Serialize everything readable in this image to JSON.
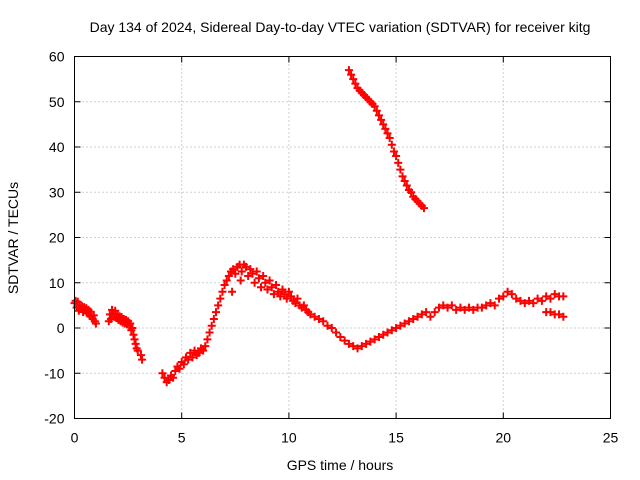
{
  "chart_data": {
    "type": "scatter",
    "title": "Day 134 of 2024, Sidereal Day-to-day VTEC variation (SDTVAR) for receiver kitg",
    "xlabel": "GPS time / hours",
    "ylabel": "SDTVAR / TECUs",
    "xlim": [
      0,
      25
    ],
    "ylim": [
      -20,
      60
    ],
    "xticks": [
      0,
      5,
      10,
      15,
      20,
      25
    ],
    "yticks": [
      -20,
      -10,
      0,
      10,
      20,
      30,
      40,
      50,
      60
    ],
    "grid": true,
    "marker": "+",
    "series": [
      {
        "name": "SDTVAR",
        "color": "#ff0000",
        "points": [
          [
            0.0,
            5.5
          ],
          [
            0.05,
            6.0
          ],
          [
            0.1,
            4.5
          ],
          [
            0.15,
            5.8
          ],
          [
            0.2,
            3.8
          ],
          [
            0.25,
            5.0
          ],
          [
            0.3,
            4.2
          ],
          [
            0.35,
            4.8
          ],
          [
            0.4,
            3.5
          ],
          [
            0.45,
            4.6
          ],
          [
            0.5,
            3.9
          ],
          [
            0.55,
            4.4
          ],
          [
            0.6,
            3.2
          ],
          [
            0.65,
            4.0
          ],
          [
            0.7,
            2.8
          ],
          [
            0.75,
            3.6
          ],
          [
            0.8,
            2.5
          ],
          [
            0.85,
            2.0
          ],
          [
            0.9,
            2.8
          ],
          [
            0.95,
            1.5
          ],
          [
            1.0,
            1.0
          ],
          [
            1.6,
            1.5
          ],
          [
            1.65,
            3.0
          ],
          [
            1.7,
            2.0
          ],
          [
            1.75,
            4.0
          ],
          [
            1.8,
            3.2
          ],
          [
            1.85,
            2.5
          ],
          [
            1.9,
            3.8
          ],
          [
            1.95,
            2.2
          ],
          [
            2.0,
            3.0
          ],
          [
            2.05,
            1.8
          ],
          [
            2.1,
            2.6
          ],
          [
            2.15,
            1.5
          ],
          [
            2.2,
            2.4
          ],
          [
            2.25,
            1.2
          ],
          [
            2.3,
            2.0
          ],
          [
            2.35,
            1.0
          ],
          [
            2.4,
            1.8
          ],
          [
            2.45,
            0.8
          ],
          [
            2.5,
            1.5
          ],
          [
            2.55,
            0.5
          ],
          [
            2.6,
            1.0
          ],
          [
            2.65,
            -0.5
          ],
          [
            2.7,
            0.0
          ],
          [
            2.75,
            -1.5
          ],
          [
            2.8,
            -2.5
          ],
          [
            2.85,
            -3.5
          ],
          [
            2.9,
            -4.5
          ],
          [
            2.95,
            -5.0
          ],
          [
            3.1,
            -6.0
          ],
          [
            3.15,
            -7.0
          ],
          [
            4.1,
            -10.0
          ],
          [
            4.2,
            -11.0
          ],
          [
            4.3,
            -12.0
          ],
          [
            4.4,
            -11.5
          ],
          [
            4.5,
            -10.5
          ],
          [
            4.6,
            -11.0
          ],
          [
            4.7,
            -9.5
          ],
          [
            4.8,
            -8.5
          ],
          [
            4.9,
            -9.0
          ],
          [
            5.0,
            -7.5
          ],
          [
            5.1,
            -8.0
          ],
          [
            5.2,
            -6.5
          ],
          [
            5.3,
            -7.0
          ],
          [
            5.4,
            -5.5
          ],
          [
            5.5,
            -6.5
          ],
          [
            5.6,
            -5.0
          ],
          [
            5.7,
            -6.0
          ],
          [
            5.8,
            -5.5
          ],
          [
            5.9,
            -4.5
          ],
          [
            6.0,
            -5.0
          ],
          [
            6.1,
            -4.0
          ],
          [
            6.2,
            -2.5
          ],
          [
            6.3,
            -1.0
          ],
          [
            6.4,
            0.5
          ],
          [
            6.5,
            2.0
          ],
          [
            6.6,
            3.5
          ],
          [
            6.7,
            5.0
          ],
          [
            6.8,
            6.5
          ],
          [
            6.9,
            8.0
          ],
          [
            7.0,
            9.5
          ],
          [
            7.1,
            10.5
          ],
          [
            7.2,
            11.5
          ],
          [
            7.3,
            12.5
          ],
          [
            7.35,
            8.0
          ],
          [
            7.4,
            13.0
          ],
          [
            7.5,
            12.0
          ],
          [
            7.6,
            13.5
          ],
          [
            7.7,
            14.0
          ],
          [
            7.75,
            10.5
          ],
          [
            7.8,
            12.5
          ],
          [
            7.9,
            14.0
          ],
          [
            8.0,
            13.5
          ],
          [
            8.1,
            11.5
          ],
          [
            8.2,
            13.0
          ],
          [
            8.3,
            12.0
          ],
          [
            8.4,
            10.0
          ],
          [
            8.5,
            12.5
          ],
          [
            8.6,
            11.0
          ],
          [
            8.7,
            9.0
          ],
          [
            8.8,
            11.5
          ],
          [
            8.9,
            10.0
          ],
          [
            9.0,
            8.5
          ],
          [
            9.1,
            10.5
          ],
          [
            9.2,
            9.0
          ],
          [
            9.3,
            7.5
          ],
          [
            9.4,
            9.5
          ],
          [
            9.5,
            8.0
          ],
          [
            9.6,
            7.0
          ],
          [
            9.7,
            8.5
          ],
          [
            9.8,
            7.5
          ],
          [
            9.9,
            6.5
          ],
          [
            10.0,
            8.0
          ],
          [
            10.1,
            7.0
          ],
          [
            10.2,
            6.0
          ],
          [
            10.3,
            5.5
          ],
          [
            10.4,
            6.5
          ],
          [
            10.5,
            5.0
          ],
          [
            10.6,
            4.5
          ],
          [
            10.7,
            5.0
          ],
          [
            10.8,
            4.0
          ],
          [
            10.9,
            3.5
          ],
          [
            11.0,
            3.0
          ],
          [
            11.2,
            2.5
          ],
          [
            11.4,
            2.0
          ],
          [
            11.6,
            1.5
          ],
          [
            11.8,
            0.5
          ],
          [
            12.0,
            0.0
          ],
          [
            12.2,
            -1.0
          ],
          [
            12.4,
            -2.0
          ],
          [
            12.6,
            -2.8
          ],
          [
            12.8,
            -3.5
          ],
          [
            13.0,
            -4.0
          ],
          [
            13.2,
            -4.5
          ],
          [
            13.4,
            -4.0
          ],
          [
            13.6,
            -3.5
          ],
          [
            13.8,
            -3.0
          ],
          [
            14.0,
            -2.5
          ],
          [
            14.2,
            -2.0
          ],
          [
            14.4,
            -1.5
          ],
          [
            14.6,
            -1.0
          ],
          [
            14.8,
            -0.5
          ],
          [
            15.0,
            0.0
          ],
          [
            15.2,
            0.5
          ],
          [
            15.4,
            1.0
          ],
          [
            15.6,
            1.5
          ],
          [
            15.8,
            2.0
          ],
          [
            16.0,
            2.5
          ],
          [
            16.2,
            3.0
          ],
          [
            16.4,
            3.5
          ],
          [
            16.6,
            2.5
          ],
          [
            16.8,
            3.5
          ],
          [
            17.0,
            4.5
          ],
          [
            17.2,
            5.0
          ],
          [
            17.4,
            4.5
          ],
          [
            17.6,
            5.0
          ],
          [
            17.8,
            4.0
          ],
          [
            18.0,
            4.5
          ],
          [
            18.2,
            4.0
          ],
          [
            18.4,
            4.5
          ],
          [
            18.6,
            4.0
          ],
          [
            18.8,
            4.5
          ],
          [
            19.0,
            4.5
          ],
          [
            19.2,
            5.0
          ],
          [
            19.4,
            5.5
          ],
          [
            19.6,
            5.0
          ],
          [
            19.8,
            6.5
          ],
          [
            20.0,
            7.0
          ],
          [
            20.2,
            8.0
          ],
          [
            20.4,
            7.5
          ],
          [
            20.6,
            6.5
          ],
          [
            20.8,
            6.0
          ],
          [
            21.0,
            5.5
          ],
          [
            21.2,
            6.0
          ],
          [
            21.4,
            5.5
          ],
          [
            21.6,
            6.5
          ],
          [
            21.8,
            6.0
          ],
          [
            22.0,
            7.0
          ],
          [
            22.2,
            6.5
          ],
          [
            22.4,
            7.5
          ],
          [
            22.6,
            7.0
          ],
          [
            22.8,
            7.0
          ],
          [
            22.0,
            3.5
          ],
          [
            22.2,
            3.5
          ],
          [
            22.4,
            3.0
          ],
          [
            22.6,
            3.0
          ],
          [
            22.8,
            2.5
          ],
          [
            12.8,
            57.0
          ],
          [
            12.9,
            56.0
          ],
          [
            13.0,
            55.0
          ],
          [
            13.1,
            54.0
          ],
          [
            13.2,
            53.0
          ],
          [
            13.3,
            52.5
          ],
          [
            13.4,
            52.0
          ],
          [
            13.5,
            51.5
          ],
          [
            13.6,
            51.0
          ],
          [
            13.7,
            50.5
          ],
          [
            13.8,
            50.0
          ],
          [
            13.9,
            49.5
          ],
          [
            14.0,
            49.0
          ],
          [
            14.1,
            48.0
          ],
          [
            14.2,
            47.0
          ],
          [
            14.3,
            46.0
          ],
          [
            14.4,
            45.0
          ],
          [
            14.5,
            44.0
          ],
          [
            14.6,
            43.0
          ],
          [
            14.7,
            42.0
          ],
          [
            14.8,
            40.5
          ],
          [
            14.9,
            39.0
          ],
          [
            15.0,
            38.0
          ],
          [
            15.1,
            36.5
          ],
          [
            15.2,
            35.0
          ],
          [
            15.3,
            33.5
          ],
          [
            15.4,
            32.5
          ],
          [
            15.5,
            31.5
          ],
          [
            15.6,
            30.5
          ],
          [
            15.7,
            30.0
          ],
          [
            15.8,
            29.0
          ],
          [
            15.9,
            28.5
          ],
          [
            16.0,
            28.0
          ],
          [
            16.1,
            27.5
          ],
          [
            16.2,
            27.0
          ],
          [
            16.3,
            26.5
          ]
        ]
      }
    ]
  }
}
